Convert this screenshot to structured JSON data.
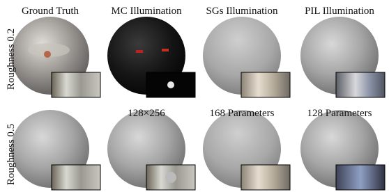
{
  "columns": [
    "Ground Truth",
    "MC Illumination",
    "SGs Illumination",
    "PIL Illumination"
  ],
  "rows": [
    "Roughness 0.2",
    "Roughness 0.5"
  ],
  "annotations": [
    "128×256",
    "168 Parameters",
    "128 Parameters"
  ]
}
